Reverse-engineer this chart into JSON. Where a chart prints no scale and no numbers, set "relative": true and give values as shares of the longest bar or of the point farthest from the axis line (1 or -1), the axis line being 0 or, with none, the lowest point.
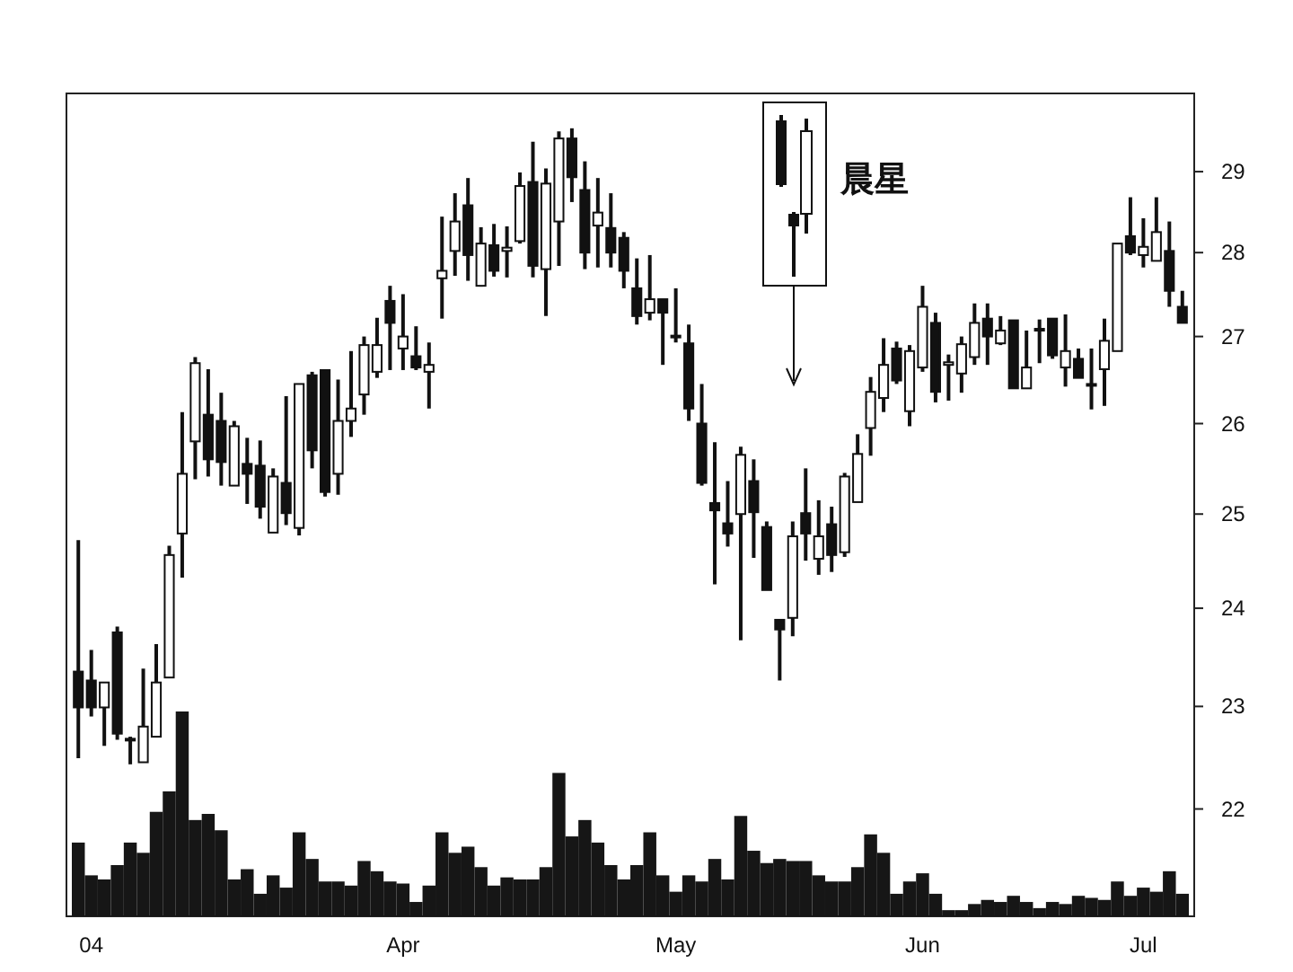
{
  "chart_data": [
    {
      "type": "candlestick",
      "log": true,
      "ylim": [
        21,
        30
      ],
      "yticks": [
        22,
        23,
        24,
        25,
        26,
        27,
        28,
        29
      ],
      "categories": [
        null,
        "04",
        null,
        null,
        null,
        null,
        null,
        null,
        null,
        null,
        null,
        null,
        null,
        null,
        null,
        null,
        null,
        null,
        null,
        null,
        null,
        null,
        null,
        null,
        null,
        "Apr",
        null,
        null,
        null,
        null,
        null,
        null,
        null,
        null,
        null,
        null,
        null,
        null,
        null,
        null,
        null,
        null,
        null,
        null,
        null,
        null,
        "May",
        null,
        null,
        null,
        null,
        null,
        null,
        null,
        null,
        null,
        null,
        null,
        null,
        null,
        null,
        null,
        null,
        null,
        null,
        "Jun",
        null,
        null,
        null,
        null,
        null,
        null,
        null,
        null,
        null,
        null,
        null,
        null,
        null,
        null,
        null,
        null,
        "Jul",
        null,
        null,
        null
      ],
      "ohlc": [
        [
          23.35,
          24.72,
          22.49,
          22.99
        ],
        [
          23.26,
          23.57,
          22.9,
          22.99
        ],
        [
          22.99,
          23.24,
          22.61,
          23.24
        ],
        [
          23.75,
          23.81,
          22.67,
          22.73
        ],
        [
          22.68,
          22.7,
          22.43,
          22.67
        ],
        [
          22.45,
          23.38,
          22.45,
          22.8
        ],
        [
          22.7,
          23.63,
          22.7,
          23.24
        ],
        [
          23.29,
          24.66,
          23.29,
          24.56
        ],
        [
          24.79,
          26.13,
          24.32,
          25.44
        ],
        [
          25.8,
          26.76,
          25.38,
          26.69
        ],
        [
          26.1,
          26.62,
          25.41,
          25.6
        ],
        [
          26.03,
          26.35,
          25.31,
          25.57
        ],
        [
          25.31,
          26.03,
          25.31,
          25.97
        ],
        [
          25.55,
          25.84,
          25.11,
          25.44
        ],
        [
          25.53,
          25.81,
          24.95,
          25.08
        ],
        [
          24.8,
          25.5,
          24.8,
          25.41
        ],
        [
          25.34,
          26.31,
          24.88,
          25.01
        ],
        [
          24.85,
          26.45,
          24.77,
          26.45
        ],
        [
          26.55,
          26.59,
          25.5,
          25.7
        ],
        [
          26.61,
          26.61,
          25.19,
          25.24
        ],
        [
          25.44,
          26.5,
          25.21,
          26.03
        ],
        [
          26.03,
          26.83,
          25.85,
          26.17
        ],
        [
          26.33,
          27.0,
          26.1,
          26.9
        ],
        [
          26.59,
          27.22,
          26.52,
          26.9
        ],
        [
          27.42,
          27.6,
          26.61,
          27.16
        ],
        [
          26.86,
          27.5,
          26.61,
          27.0
        ],
        [
          26.77,
          27.12,
          26.61,
          26.64
        ],
        [
          26.59,
          26.93,
          26.17,
          26.67
        ],
        [
          27.69,
          28.44,
          27.21,
          27.78
        ],
        [
          28.02,
          28.73,
          27.72,
          28.38
        ],
        [
          28.58,
          28.92,
          27.66,
          27.97
        ],
        [
          27.6,
          28.31,
          27.59,
          28.11
        ],
        [
          28.09,
          28.35,
          27.71,
          27.78
        ],
        [
          28.02,
          28.32,
          27.7,
          28.06
        ],
        [
          28.14,
          28.99,
          28.11,
          28.82
        ],
        [
          28.87,
          29.38,
          27.7,
          27.84
        ],
        [
          27.8,
          29.04,
          27.24,
          28.85
        ],
        [
          28.38,
          29.51,
          27.84,
          29.42
        ],
        [
          29.42,
          29.55,
          28.62,
          28.93
        ],
        [
          28.77,
          29.13,
          27.8,
          28.0
        ],
        [
          28.33,
          28.92,
          27.82,
          28.49
        ],
        [
          28.3,
          28.73,
          27.82,
          28.0
        ],
        [
          28.18,
          28.25,
          27.57,
          27.78
        ],
        [
          27.57,
          27.93,
          27.14,
          27.24
        ],
        [
          27.28,
          27.97,
          27.19,
          27.44
        ],
        [
          27.44,
          27.44,
          26.67,
          27.28
        ],
        [
          27.0,
          27.57,
          26.93,
          27.01
        ],
        [
          26.92,
          27.14,
          26.03,
          26.17
        ],
        [
          26.0,
          26.45,
          25.31,
          25.34
        ],
        [
          25.12,
          25.79,
          24.25,
          25.04
        ],
        [
          24.9,
          25.36,
          24.65,
          24.79
        ],
        [
          25.0,
          25.74,
          23.67,
          25.65
        ],
        [
          25.36,
          25.6,
          24.53,
          25.02
        ],
        [
          24.86,
          24.92,
          24.19,
          24.19
        ],
        [
          23.88,
          23.88,
          23.26,
          23.78
        ],
        [
          23.9,
          24.92,
          23.71,
          24.76
        ],
        [
          25.01,
          25.5,
          24.5,
          24.79
        ],
        [
          24.52,
          25.15,
          24.35,
          24.76
        ],
        [
          24.89,
          25.08,
          24.38,
          24.56
        ],
        [
          24.59,
          25.45,
          24.54,
          25.41
        ],
        [
          25.13,
          25.88,
          25.13,
          25.66
        ],
        [
          25.95,
          26.53,
          25.64,
          26.36
        ],
        [
          26.29,
          26.98,
          26.13,
          26.67
        ],
        [
          26.86,
          26.94,
          26.45,
          26.49
        ],
        [
          26.14,
          26.9,
          25.97,
          26.83
        ],
        [
          26.64,
          27.6,
          26.59,
          27.35
        ],
        [
          27.16,
          27.28,
          26.24,
          26.36
        ],
        [
          26.67,
          26.79,
          26.26,
          26.7
        ],
        [
          26.57,
          27.0,
          26.35,
          26.91
        ],
        [
          26.76,
          27.39,
          26.67,
          27.16
        ],
        [
          27.21,
          27.39,
          26.67,
          27.0
        ],
        [
          26.92,
          27.24,
          26.9,
          27.07
        ],
        [
          27.19,
          27.19,
          26.4,
          26.4
        ],
        [
          26.4,
          27.07,
          26.4,
          26.64
        ],
        [
          27.08,
          27.2,
          26.69,
          27.09
        ],
        [
          27.21,
          27.21,
          26.74,
          26.78
        ],
        [
          26.64,
          27.26,
          26.42,
          26.83
        ],
        [
          26.74,
          26.86,
          26.52,
          26.52
        ],
        [
          26.44,
          26.86,
          26.16,
          26.45
        ],
        [
          26.62,
          27.21,
          26.2,
          26.95
        ],
        [
          26.83,
          28.11,
          26.83,
          28.11
        ],
        [
          28.2,
          28.68,
          27.97,
          28.0
        ],
        [
          27.97,
          28.42,
          27.82,
          28.07
        ],
        [
          27.9,
          28.68,
          27.9,
          28.25
        ],
        [
          28.02,
          28.38,
          27.35,
          27.54
        ],
        [
          27.35,
          27.54,
          27.16,
          27.16
        ]
      ],
      "annotations": [
        "晨星"
      ]
    },
    {
      "type": "bar",
      "relative": true,
      "color": "#161616",
      "categories": [
        null,
        null,
        null,
        null,
        null,
        null,
        null,
        null,
        null,
        null,
        null,
        null,
        null,
        null,
        null,
        null,
        null,
        null,
        null,
        null,
        null,
        null,
        null,
        null,
        null,
        null,
        null,
        null,
        null,
        null,
        null,
        null,
        null,
        null,
        null,
        null,
        null,
        null,
        null,
        null,
        null,
        null,
        null,
        null,
        null,
        null,
        null,
        null,
        null,
        null,
        null,
        null,
        null,
        null,
        null,
        null,
        null,
        null,
        null,
        null,
        null,
        null,
        null,
        null,
        null,
        null,
        null,
        null,
        null,
        null,
        null,
        null,
        null,
        null,
        null,
        null,
        null,
        null,
        null,
        null,
        null,
        null,
        null,
        null,
        null,
        null
      ],
      "values": [
        0.36,
        0.2,
        0.18,
        0.25,
        0.36,
        0.31,
        0.51,
        0.61,
        1,
        0.47,
        0.5,
        0.42,
        0.18,
        0.23,
        0.11,
        0.2,
        0.14,
        0.41,
        0.28,
        0.17,
        0.17,
        0.15,
        0.27,
        0.22,
        0.17,
        0.16,
        0.07,
        0.15,
        0.41,
        0.31,
        0.34,
        0.24,
        0.15,
        0.19,
        0.18,
        0.18,
        0.24,
        0.7,
        0.39,
        0.47,
        0.36,
        0.25,
        0.18,
        0.25,
        0.41,
        0.2,
        0.12,
        0.2,
        0.17,
        0.28,
        0.18,
        0.49,
        0.32,
        0.26,
        0.28,
        0.27,
        0.27,
        0.2,
        0.17,
        0.17,
        0.24,
        0.4,
        0.31,
        0.11,
        0.17,
        0.21,
        0.11,
        0.03,
        0.03,
        0.06,
        0.08,
        0.07,
        0.1,
        0.07,
        0.04,
        0.07,
        0.06,
        0.1,
        0.09,
        0.08,
        0.17,
        0.1,
        0.14,
        0.12,
        0.22,
        0.11
      ]
    }
  ]
}
